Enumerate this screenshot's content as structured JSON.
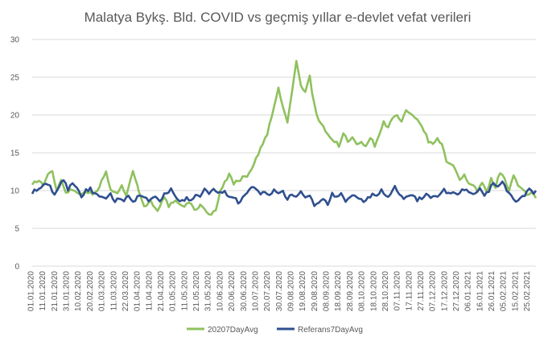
{
  "chart_data": {
    "type": "line",
    "title": "Malatya Bykş. Bld. COVID vs geçmiş yıllar e-devlet vefat verileri",
    "xlabel": "",
    "ylabel": "",
    "ylim": [
      0,
      30
    ],
    "yticks": [
      0,
      5,
      10,
      15,
      20,
      25,
      30
    ],
    "grid": true,
    "legend_position": "bottom",
    "x_tick_labels": [
      "01.01.2020",
      "11.01.2020",
      "21.01.2020",
      "31.01.2020",
      "10.02.2020",
      "20.02.2020",
      "01.03.2020",
      "11.03.2020",
      "22.03.2020",
      "01.04.2020",
      "11.04.2020",
      "21.04.2020",
      "01.05.2020",
      "11.05.2020",
      "21.05.2020",
      "31.05.2020",
      "10.06.2020",
      "20.06.2020",
      "30.06.2020",
      "10.07.2020",
      "20.07.2020",
      "30.07.2020",
      "09.08.2020",
      "19.08.2020",
      "29.08.2020",
      "08.09.2020",
      "18.09.2020",
      "28.09.2020",
      "08.10.2020",
      "18.10.2020",
      "28.10.2020",
      "07.11.2020",
      "17.11.2020",
      "27.11.2020",
      "07.12.2020",
      "17.12.2020",
      "27.12.2020",
      "06.01.2021",
      "16.01.2021",
      "26.01.2021",
      "05.02.2021",
      "15.02.2021",
      "25.02.2021"
    ],
    "series": [
      {
        "name": "20207DayAvg",
        "color": "#8fc15e",
        "anchors": [
          [
            0,
            11
          ],
          [
            6,
            11.3
          ],
          [
            10,
            10.8
          ],
          [
            14,
            12
          ],
          [
            18,
            12.5
          ],
          [
            22,
            10
          ],
          [
            26,
            11.5
          ],
          [
            30,
            9.8
          ],
          [
            36,
            10.2
          ],
          [
            42,
            9.5
          ],
          [
            48,
            10
          ],
          [
            54,
            9.5
          ],
          [
            60,
            10.5
          ],
          [
            66,
            12.5
          ],
          [
            70,
            10
          ],
          [
            76,
            9.8
          ],
          [
            80,
            10.5
          ],
          [
            84,
            9.5
          ],
          [
            90,
            12.8
          ],
          [
            95,
            10
          ],
          [
            100,
            8
          ],
          [
            106,
            8.5
          ],
          [
            112,
            7.5
          ],
          [
            118,
            9
          ],
          [
            122,
            8
          ],
          [
            128,
            8.5
          ],
          [
            134,
            7.8
          ],
          [
            140,
            8.5
          ],
          [
            145,
            7.5
          ],
          [
            150,
            8
          ],
          [
            156,
            7.2
          ],
          [
            160,
            6.8
          ],
          [
            164,
            7.5
          ],
          [
            168,
            10
          ],
          [
            172,
            11
          ],
          [
            176,
            12.2
          ],
          [
            180,
            11
          ],
          [
            186,
            11.5
          ],
          [
            192,
            12
          ],
          [
            198,
            13.5
          ],
          [
            204,
            15.5
          ],
          [
            210,
            17.5
          ],
          [
            216,
            21
          ],
          [
            220,
            23.5
          ],
          [
            224,
            21
          ],
          [
            228,
            19
          ],
          [
            232,
            23
          ],
          [
            236,
            27
          ],
          [
            240,
            24
          ],
          [
            244,
            23
          ],
          [
            248,
            25
          ],
          [
            250,
            23
          ],
          [
            254,
            20
          ],
          [
            258,
            19
          ],
          [
            262,
            18
          ],
          [
            266,
            17
          ],
          [
            270,
            16.5
          ],
          [
            274,
            16
          ],
          [
            278,
            17.5
          ],
          [
            282,
            16.5
          ],
          [
            286,
            17
          ],
          [
            290,
            16
          ],
          [
            294,
            16.5
          ],
          [
            298,
            16
          ],
          [
            302,
            17
          ],
          [
            306,
            16
          ],
          [
            310,
            17.5
          ],
          [
            314,
            19
          ],
          [
            318,
            18.5
          ],
          [
            322,
            19.5
          ],
          [
            326,
            20
          ],
          [
            330,
            19
          ],
          [
            334,
            20.5
          ],
          [
            338,
            20
          ],
          [
            342,
            19.5
          ],
          [
            346,
            19
          ],
          [
            350,
            18
          ],
          [
            354,
            16.5
          ],
          [
            358,
            16
          ],
          [
            362,
            17
          ],
          [
            366,
            16
          ],
          [
            370,
            14
          ],
          [
            374,
            13.5
          ],
          [
            378,
            13
          ],
          [
            382,
            11.5
          ],
          [
            386,
            12
          ],
          [
            390,
            11
          ],
          [
            394,
            10.5
          ],
          [
            398,
            10
          ],
          [
            402,
            11
          ],
          [
            406,
            10
          ],
          [
            410,
            11.5
          ],
          [
            414,
            10.5
          ],
          [
            418,
            12.5
          ],
          [
            422,
            11.5
          ],
          [
            426,
            10
          ],
          [
            430,
            12
          ],
          [
            434,
            10.5
          ],
          [
            438,
            10
          ],
          [
            442,
            9.5
          ],
          [
            446,
            9.8
          ],
          [
            450,
            9
          ]
        ]
      },
      {
        "name": "Referans7DayAvg",
        "color": "#2f4f8f",
        "anchors": [
          [
            0,
            9.8
          ],
          [
            6,
            10.2
          ],
          [
            12,
            10.8
          ],
          [
            16,
            10.5
          ],
          [
            20,
            9.5
          ],
          [
            24,
            10.5
          ],
          [
            28,
            11.5
          ],
          [
            32,
            10.2
          ],
          [
            36,
            11
          ],
          [
            40,
            10.5
          ],
          [
            44,
            9.2
          ],
          [
            48,
            10
          ],
          [
            52,
            10.2
          ],
          [
            56,
            9.5
          ],
          [
            60,
            9.2
          ],
          [
            66,
            8.8
          ],
          [
            70,
            9.5
          ],
          [
            74,
            8.5
          ],
          [
            78,
            9
          ],
          [
            82,
            8.8
          ],
          [
            86,
            9.2
          ],
          [
            90,
            8.5
          ],
          [
            96,
            9.5
          ],
          [
            100,
            9
          ],
          [
            104,
            8.7
          ],
          [
            110,
            9
          ],
          [
            114,
            8.5
          ],
          [
            118,
            9.5
          ],
          [
            124,
            10.2
          ],
          [
            128,
            9
          ],
          [
            132,
            8.5
          ],
          [
            138,
            9
          ],
          [
            142,
            8.7
          ],
          [
            146,
            9.5
          ],
          [
            150,
            9
          ],
          [
            154,
            10.3
          ],
          [
            158,
            9.5
          ],
          [
            162,
            10.2
          ],
          [
            166,
            9.5
          ],
          [
            172,
            9.8
          ],
          [
            176,
            9
          ],
          [
            180,
            9.2
          ],
          [
            184,
            8.5
          ],
          [
            188,
            9
          ],
          [
            192,
            9.5
          ],
          [
            196,
            10.5
          ],
          [
            200,
            10.2
          ],
          [
            204,
            9.5
          ],
          [
            208,
            10
          ],
          [
            212,
            9.2
          ],
          [
            216,
            10
          ],
          [
            220,
            9.5
          ],
          [
            224,
            10
          ],
          [
            228,
            8.8
          ],
          [
            232,
            9.5
          ],
          [
            236,
            9
          ],
          [
            240,
            9.8
          ],
          [
            244,
            9
          ],
          [
            248,
            9.5
          ],
          [
            252,
            7.8
          ],
          [
            256,
            8.5
          ],
          [
            260,
            9
          ],
          [
            264,
            8.2
          ],
          [
            268,
            9.5
          ],
          [
            272,
            9
          ],
          [
            276,
            9.5
          ],
          [
            280,
            8.5
          ],
          [
            284,
            9
          ],
          [
            288,
            9.5
          ],
          [
            292,
            9
          ],
          [
            296,
            8.5
          ],
          [
            300,
            9
          ],
          [
            304,
            9.5
          ],
          [
            308,
            9.2
          ],
          [
            312,
            10
          ],
          [
            316,
            9.2
          ],
          [
            320,
            9.5
          ],
          [
            324,
            10.5
          ],
          [
            328,
            9.5
          ],
          [
            332,
            9
          ],
          [
            336,
            9.5
          ],
          [
            340,
            9.2
          ],
          [
            344,
            8.8
          ],
          [
            348,
            9
          ],
          [
            352,
            9.5
          ],
          [
            356,
            9
          ],
          [
            360,
            9.2
          ],
          [
            364,
            9.5
          ],
          [
            368,
            10.2
          ],
          [
            372,
            9.5
          ],
          [
            376,
            10
          ],
          [
            380,
            9.5
          ],
          [
            384,
            10
          ],
          [
            388,
            10.2
          ],
          [
            392,
            9.5
          ],
          [
            396,
            9.8
          ],
          [
            400,
            10.5
          ],
          [
            404,
            9.5
          ],
          [
            408,
            10
          ],
          [
            412,
            11
          ],
          [
            416,
            10.5
          ],
          [
            420,
            11.2
          ],
          [
            424,
            10
          ],
          [
            428,
            9.5
          ],
          [
            432,
            8.5
          ],
          [
            436,
            9.2
          ],
          [
            440,
            9.5
          ],
          [
            444,
            10.2
          ],
          [
            448,
            9.5
          ],
          [
            450,
            10
          ]
        ]
      }
    ]
  }
}
